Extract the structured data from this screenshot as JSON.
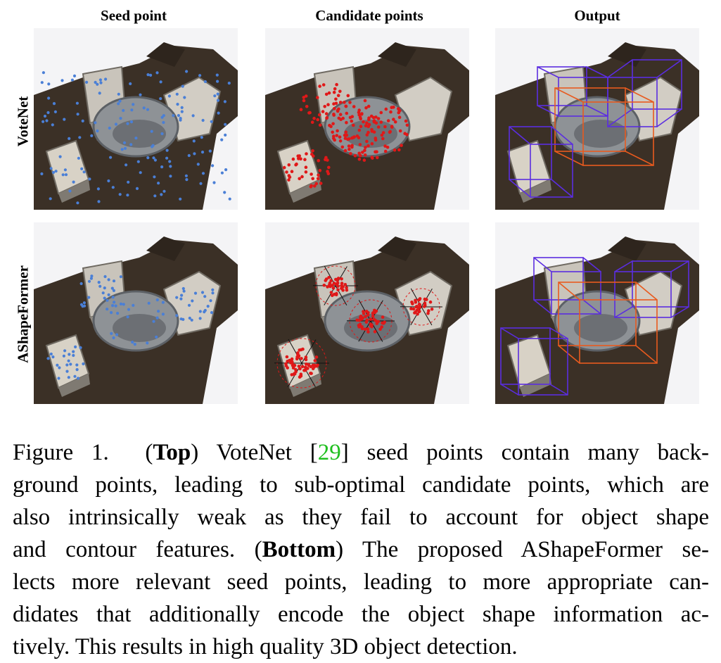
{
  "columns": [
    "Seed point",
    "Candidate points",
    "Output"
  ],
  "rows": [
    "VoteNet",
    "AShapeFormer"
  ],
  "caption": {
    "fig_label": "Figure 1.",
    "top_tag": "Top",
    "line1_a": "VoteNet [",
    "ref": "29",
    "line1_b": "] seed points contain many back-",
    "line2": "ground points, leading to sub-optimal candidate points, which are",
    "line3": "also intrinsically weak as they fail to account for object shape",
    "line4_a": "and contour features. (",
    "bottom_tag": "Bottom",
    "line4_b": ") The proposed AShapeFormer se-",
    "line5": "lects more relevant seed points, leading to more appropriate can-",
    "line6": "didates that additionally encode the object shape information ac-",
    "line7": "tively. This results in high quality 3D object detection."
  },
  "colors": {
    "floor": "#3b3026",
    "seed_point": "#4a7fd6",
    "candidate_point": "#e01818",
    "box_chair": "#5b2de0",
    "box_table": "#e85a1e",
    "citation": "#1fbf1f"
  }
}
